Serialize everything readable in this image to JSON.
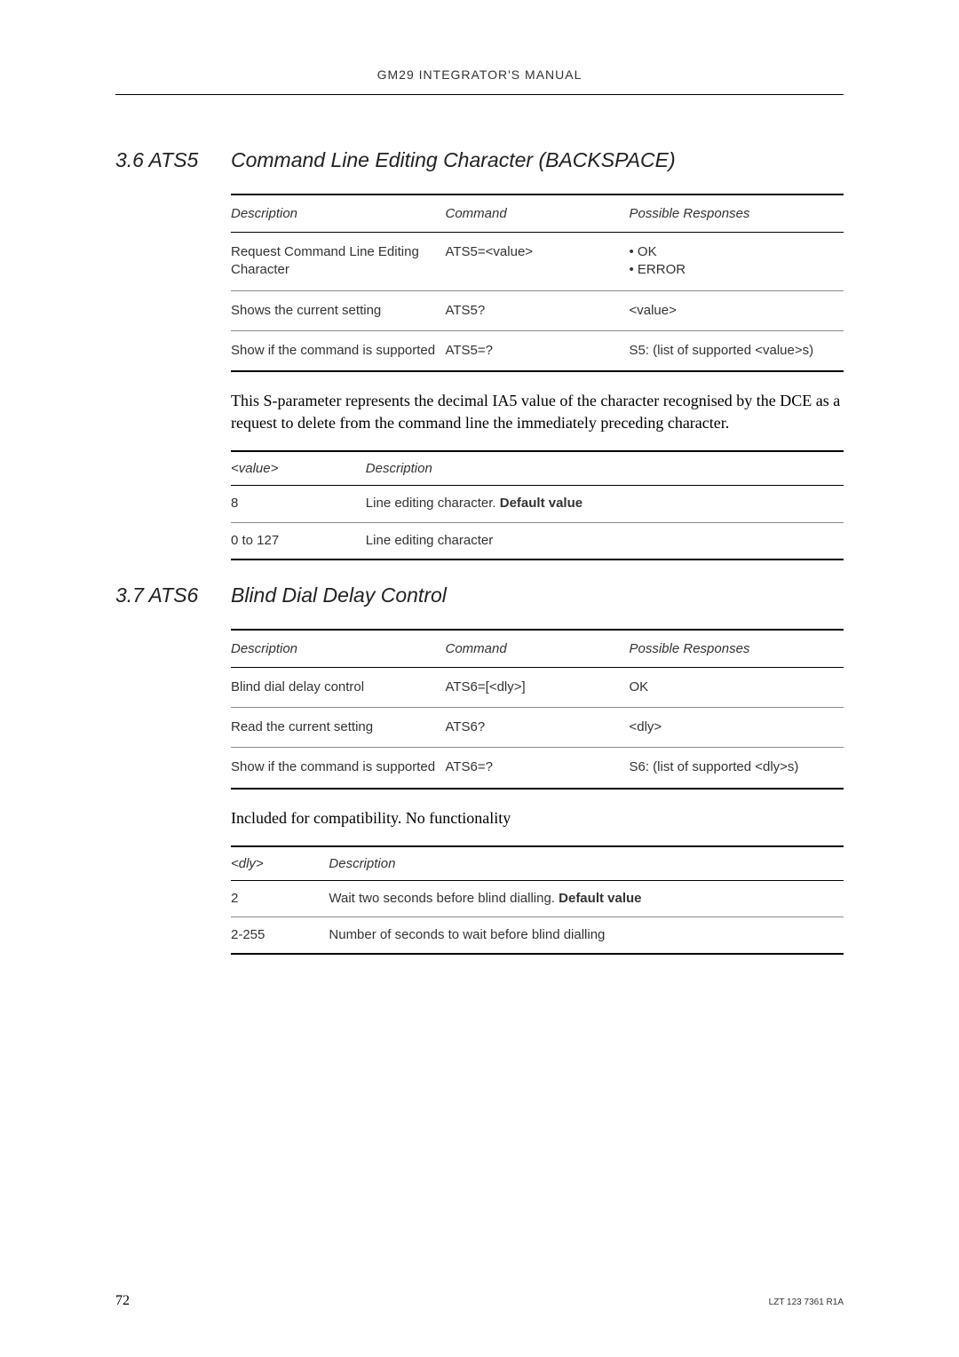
{
  "header": "GM29 INTEGRATOR'S MANUAL",
  "footer": {
    "pageNumber": "72",
    "docId": "LZT 123 7361 R1A"
  },
  "sections": [
    {
      "num": "3.6 ATS5",
      "title": "Command Line Editing Character (BACKSPACE)",
      "cmdTable": {
        "headers": [
          "Description",
          "Command",
          "Possible Responses"
        ],
        "rows": [
          {
            "desc": "Request Command Line Editing Character",
            "cmd": "ATS5=<value>",
            "resp": [
              "• OK",
              "• ERROR"
            ]
          },
          {
            "desc": "Shows the current setting",
            "cmd": "ATS5?",
            "resp": [
              "<value>"
            ]
          },
          {
            "desc": "Show if the command is supported",
            "cmd": "ATS5=?",
            "resp": [
              "S5: (list of supported <value>s)"
            ]
          }
        ]
      },
      "bodyText": "This S-parameter represents the decimal IA5 value of the character recognised by the DCE as a request to delete from the command line the immediately preceding character.",
      "valTable": {
        "headers": [
          "<value>",
          "Description"
        ],
        "rows": [
          {
            "v": "8",
            "d": "Line editing character. ",
            "bold": "Default value"
          },
          {
            "v": "0 to 127",
            "d": "Line editing character",
            "bold": ""
          }
        ]
      }
    },
    {
      "num": "3.7 ATS6",
      "title": "Blind Dial Delay Control",
      "cmdTable": {
        "headers": [
          "Description",
          "Command",
          "Possible Responses"
        ],
        "rows": [
          {
            "desc": "Blind dial delay control",
            "cmd": "ATS6=[<dly>]",
            "resp": [
              "OK"
            ]
          },
          {
            "desc": "Read the current setting",
            "cmd": "ATS6?",
            "resp": [
              "<dly>"
            ]
          },
          {
            "desc": "Show if the command is supported",
            "cmd": "ATS6=?",
            "resp": [
              "S6: (list of supported <dly>s)"
            ]
          }
        ]
      },
      "bodyText": "Included for compatibility. No functionality",
      "valTable": {
        "headers": [
          "<dly>",
          "Description"
        ],
        "rows": [
          {
            "v": "2",
            "d": "Wait two seconds before blind dialling. ",
            "bold": "Default value"
          },
          {
            "v": "2-255",
            "d": "Number of seconds to wait before blind dialling",
            "bold": ""
          }
        ]
      }
    }
  ]
}
